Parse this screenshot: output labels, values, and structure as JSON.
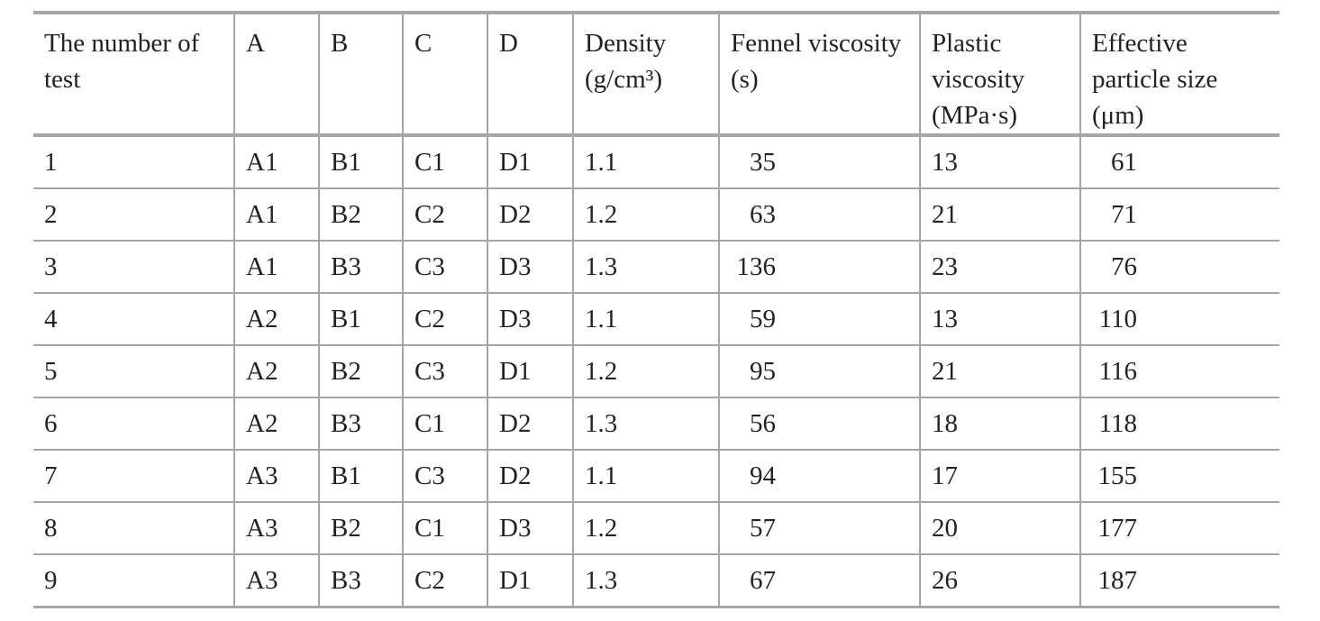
{
  "table": {
    "header": [
      "The number of test",
      "A",
      "B",
      "C",
      "D",
      "Density (g/cm³)",
      "Fennel viscosity (s)",
      "Plastic viscosity (MPa·s)",
      "Effective particle size (μm)"
    ],
    "rows": [
      [
        1,
        "A1",
        "B1",
        "C1",
        "D1",
        1.1,
        35,
        13,
        61
      ],
      [
        2,
        "A1",
        "B2",
        "C2",
        "D2",
        1.2,
        63,
        21,
        71
      ],
      [
        3,
        "A1",
        "B3",
        "C3",
        "D3",
        1.3,
        136,
        23,
        76
      ],
      [
        4,
        "A2",
        "B1",
        "C2",
        "D3",
        1.1,
        59,
        13,
        110
      ],
      [
        5,
        "A2",
        "B2",
        "C3",
        "D1",
        1.2,
        95,
        21,
        116
      ],
      [
        6,
        "A2",
        "B3",
        "C1",
        "D2",
        1.3,
        56,
        18,
        118
      ],
      [
        7,
        "A3",
        "B1",
        "C3",
        "D2",
        1.1,
        94,
        17,
        155
      ],
      [
        8,
        "A3",
        "B2",
        "C1",
        "D3",
        1.2,
        57,
        20,
        177
      ],
      [
        9,
        "A3",
        "B3",
        "C2",
        "D1",
        1.3,
        67,
        26,
        187
      ]
    ]
  }
}
